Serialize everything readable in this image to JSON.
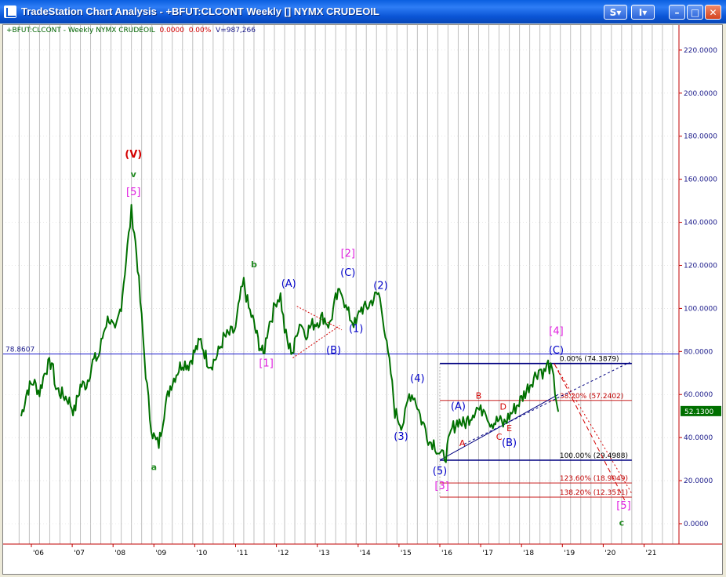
{
  "window": {
    "title": "TradeStation Chart Analysis - +BFUT:CLCONT Weekly [] NYMX CRUDEOIL",
    "buttons": [
      "S",
      "I",
      "",
      "",
      ""
    ]
  },
  "header": {
    "symbol": "+BFUT:CLCONT - Weekly  NYMX CRUDEOIL",
    "last": "0.0000",
    "change_pct": "0.00%",
    "volume": "V=987,266"
  },
  "colors": {
    "price_line": "#007000",
    "axis_text": "#1a1a8a",
    "grid": "#bfbfbf",
    "axis_line": "#c00000",
    "fib_lines_major": "#000080",
    "fib_lines_minor": "#c00000",
    "trendlines": "#000080",
    "triangle": "#d40000",
    "projection": "#d40000",
    "wave_red": "#d40000",
    "wave_green": "#228B22",
    "wave_magenta": "#e020e0",
    "wave_blue": "#0000c8"
  },
  "chart_data": {
    "type": "line",
    "title": "",
    "xlabel": "",
    "ylabel": "",
    "ylim": [
      -10,
      230
    ],
    "xlim": [
      2005.7,
      2021.9
    ],
    "y_ticks": [
      "220.0000",
      "200.0000",
      "180.0000",
      "160.0000",
      "140.0000",
      "120.0000",
      "100.0000",
      "80.0000",
      "60.0000",
      "40.0000",
      "20.0000",
      "0.0000"
    ],
    "x_ticks": [
      {
        "label": "'06",
        "x": 2006
      },
      {
        "label": "'07",
        "x": 2007
      },
      {
        "label": "'08",
        "x": 2008
      },
      {
        "label": "'09",
        "x": 2009
      },
      {
        "label": "'10",
        "x": 2010
      },
      {
        "label": "'11",
        "x": 2011
      },
      {
        "label": "'12",
        "x": 2012
      },
      {
        "label": "'13",
        "x": 2013
      },
      {
        "label": "'14",
        "x": 2014
      },
      {
        "label": "'15",
        "x": 2015
      },
      {
        "label": "'16",
        "x": 2016
      },
      {
        "label": "'17",
        "x": 2017
      },
      {
        "label": "'18",
        "x": 2018
      },
      {
        "label": "'19",
        "x": 2019
      },
      {
        "label": "'20",
        "x": 2020
      },
      {
        "label": "'21",
        "x": 2021
      }
    ],
    "series": [
      {
        "name": "+BFUT:CLCONT",
        "x": [
          2005.75,
          2005.9,
          2006.05,
          2006.2,
          2006.35,
          2006.5,
          2006.6,
          2006.75,
          2006.9,
          2007.05,
          2007.2,
          2007.35,
          2007.5,
          2007.65,
          2007.8,
          2007.9,
          2008.05,
          2008.2,
          2008.35,
          2008.45,
          2008.52,
          2008.6,
          2008.7,
          2008.8,
          2008.9,
          2008.97,
          2009.05,
          2009.12,
          2009.25,
          2009.4,
          2009.55,
          2009.7,
          2009.85,
          2010.0,
          2010.15,
          2010.3,
          2010.4,
          2010.55,
          2010.7,
          2010.85,
          2011.0,
          2011.1,
          2011.2,
          2011.32,
          2011.42,
          2011.55,
          2011.68,
          2011.8,
          2011.9,
          2012.0,
          2012.1,
          2012.2,
          2012.3,
          2012.42,
          2012.5,
          2012.6,
          2012.7,
          2012.85,
          2013.0,
          2013.15,
          2013.3,
          2013.45,
          2013.6,
          2013.7,
          2013.8,
          2013.95,
          2014.05,
          2014.2,
          2014.35,
          2014.5,
          2014.6,
          2014.7,
          2014.8,
          2014.9,
          2015.0,
          2015.08,
          2015.15,
          2015.25,
          2015.35,
          2015.45,
          2015.55,
          2015.65,
          2015.75,
          2015.85,
          2015.95,
          2016.05,
          2016.15,
          2016.3,
          2016.45,
          2016.6,
          2016.75,
          2016.9,
          2017.0,
          2017.1,
          2017.2,
          2017.3,
          2017.45,
          2017.55,
          2017.7,
          2017.85,
          2018.0,
          2018.15,
          2018.3,
          2018.45,
          2018.55,
          2018.65,
          2018.75,
          2018.82,
          2018.9
        ],
        "values": [
          50,
          62,
          66,
          61,
          72,
          75,
          63,
          60,
          58,
          52,
          64,
          65,
          75,
          78,
          92,
          96,
          88,
          102,
          128,
          145,
          136,
          120,
          95,
          70,
          50,
          42,
          38,
          37,
          52,
          64,
          70,
          75,
          74,
          80,
          85,
          76,
          74,
          78,
          86,
          88,
          90,
          104,
          112,
          100,
          95,
          85,
          78,
          92,
          97,
          104,
          106,
          90,
          82,
          80,
          90,
          94,
          88,
          92,
          94,
          96,
          92,
          104,
          109,
          100,
          96,
          92,
          100,
          100,
          104,
          107,
          98,
          82,
          70,
          52,
          48,
          46,
          50,
          60,
          60,
          55,
          48,
          44,
          38,
          38,
          34,
          31,
          32,
          44,
          48,
          46,
          50,
          54,
          52,
          55,
          48,
          47,
          48,
          46,
          50,
          54,
          58,
          63,
          68,
          72,
          70,
          74,
          70,
          62,
          52
        ]
      }
    ],
    "reference_line": {
      "value": 78.8607,
      "label": "78.8607"
    },
    "last_value_label": "52.1300",
    "fib_retracement": [
      {
        "label": "0.00% (74.3879)",
        "value": 74.3879
      },
      {
        "label": "38.20% (57.2402)",
        "value": 57.2402
      },
      {
        "label": "100.00% (29.4988)",
        "value": 29.4988
      },
      {
        "label": "123.60% (18.9049)",
        "value": 18.9049
      },
      {
        "label": "138.20% (12.3511)",
        "value": 12.3511
      }
    ],
    "wave_labels": [
      {
        "text": "(V)",
        "x": 2008.5,
        "y": 170,
        "color": "red"
      },
      {
        "text": "v",
        "x": 2008.5,
        "y": 161,
        "color": "green"
      },
      {
        "text": "[5]",
        "x": 2008.5,
        "y": 152.5,
        "color": "magenta"
      },
      {
        "text": "a",
        "x": 2009.0,
        "y": 25,
        "color": "green"
      },
      {
        "text": "b",
        "x": 2011.45,
        "y": 119,
        "color": "green"
      },
      {
        "text": "(A)",
        "x": 2012.3,
        "y": 110,
        "color": "blue"
      },
      {
        "text": "[2]",
        "x": 2013.75,
        "y": 124,
        "color": "magenta"
      },
      {
        "text": "(C)",
        "x": 2013.75,
        "y": 115,
        "color": "blue"
      },
      {
        "text": "(2)",
        "x": 2014.55,
        "y": 109,
        "color": "blue"
      },
      {
        "text": "(1)",
        "x": 2013.95,
        "y": 89,
        "color": "blue"
      },
      {
        "text": "(B)",
        "x": 2013.4,
        "y": 79,
        "color": "blue"
      },
      {
        "text": "[1]",
        "x": 2011.75,
        "y": 73,
        "color": "magenta"
      },
      {
        "text": "(4)",
        "x": 2015.45,
        "y": 66,
        "color": "blue"
      },
      {
        "text": "(3)",
        "x": 2015.05,
        "y": 39,
        "color": "blue"
      },
      {
        "text": "(5)",
        "x": 2016.0,
        "y": 23,
        "color": "blue"
      },
      {
        "text": "[3]",
        "x": 2016.05,
        "y": 16,
        "color": "magenta"
      },
      {
        "text": "(A)",
        "x": 2016.45,
        "y": 53,
        "color": "blue"
      },
      {
        "text": "A",
        "x": 2016.55,
        "y": 36,
        "color": "red"
      },
      {
        "text": "B",
        "x": 2016.95,
        "y": 58,
        "color": "red"
      },
      {
        "text": "C",
        "x": 2017.45,
        "y": 39,
        "color": "red"
      },
      {
        "text": "D",
        "x": 2017.55,
        "y": 53,
        "color": "red"
      },
      {
        "text": "E",
        "x": 2017.7,
        "y": 43,
        "color": "red"
      },
      {
        "text": "(B)",
        "x": 2017.7,
        "y": 36,
        "color": "blue"
      },
      {
        "text": "[4]",
        "x": 2018.85,
        "y": 88,
        "color": "magenta"
      },
      {
        "text": "(C)",
        "x": 2018.85,
        "y": 79,
        "color": "blue"
      },
      {
        "text": "[5]",
        "x": 2020.5,
        "y": 7,
        "color": "magenta"
      },
      {
        "text": "c",
        "x": 2020.45,
        "y": -1,
        "color": "green"
      }
    ],
    "trendlines": [
      {
        "kind": "triangle-top",
        "from": [
          2012.5,
          101
        ],
        "to": [
          2013.6,
          90
        ]
      },
      {
        "kind": "triangle-bottom",
        "from": [
          2012.4,
          77
        ],
        "to": [
          2013.55,
          92
        ]
      },
      {
        "kind": "channel-lower",
        "from": [
          2016.0,
          29.5
        ],
        "to": [
          2018.9,
          60
        ]
      },
      {
        "kind": "channel-upper",
        "from": [
          2016.6,
          37
        ],
        "to": [
          2020.65,
          75
        ]
      },
      {
        "kind": "projection",
        "from": [
          2018.8,
          74.4
        ],
        "to": [
          2020.55,
          10
        ]
      },
      {
        "kind": "projection-dashed",
        "from": [
          2018.8,
          74.4
        ],
        "to": [
          2020.7,
          14
        ]
      }
    ]
  }
}
